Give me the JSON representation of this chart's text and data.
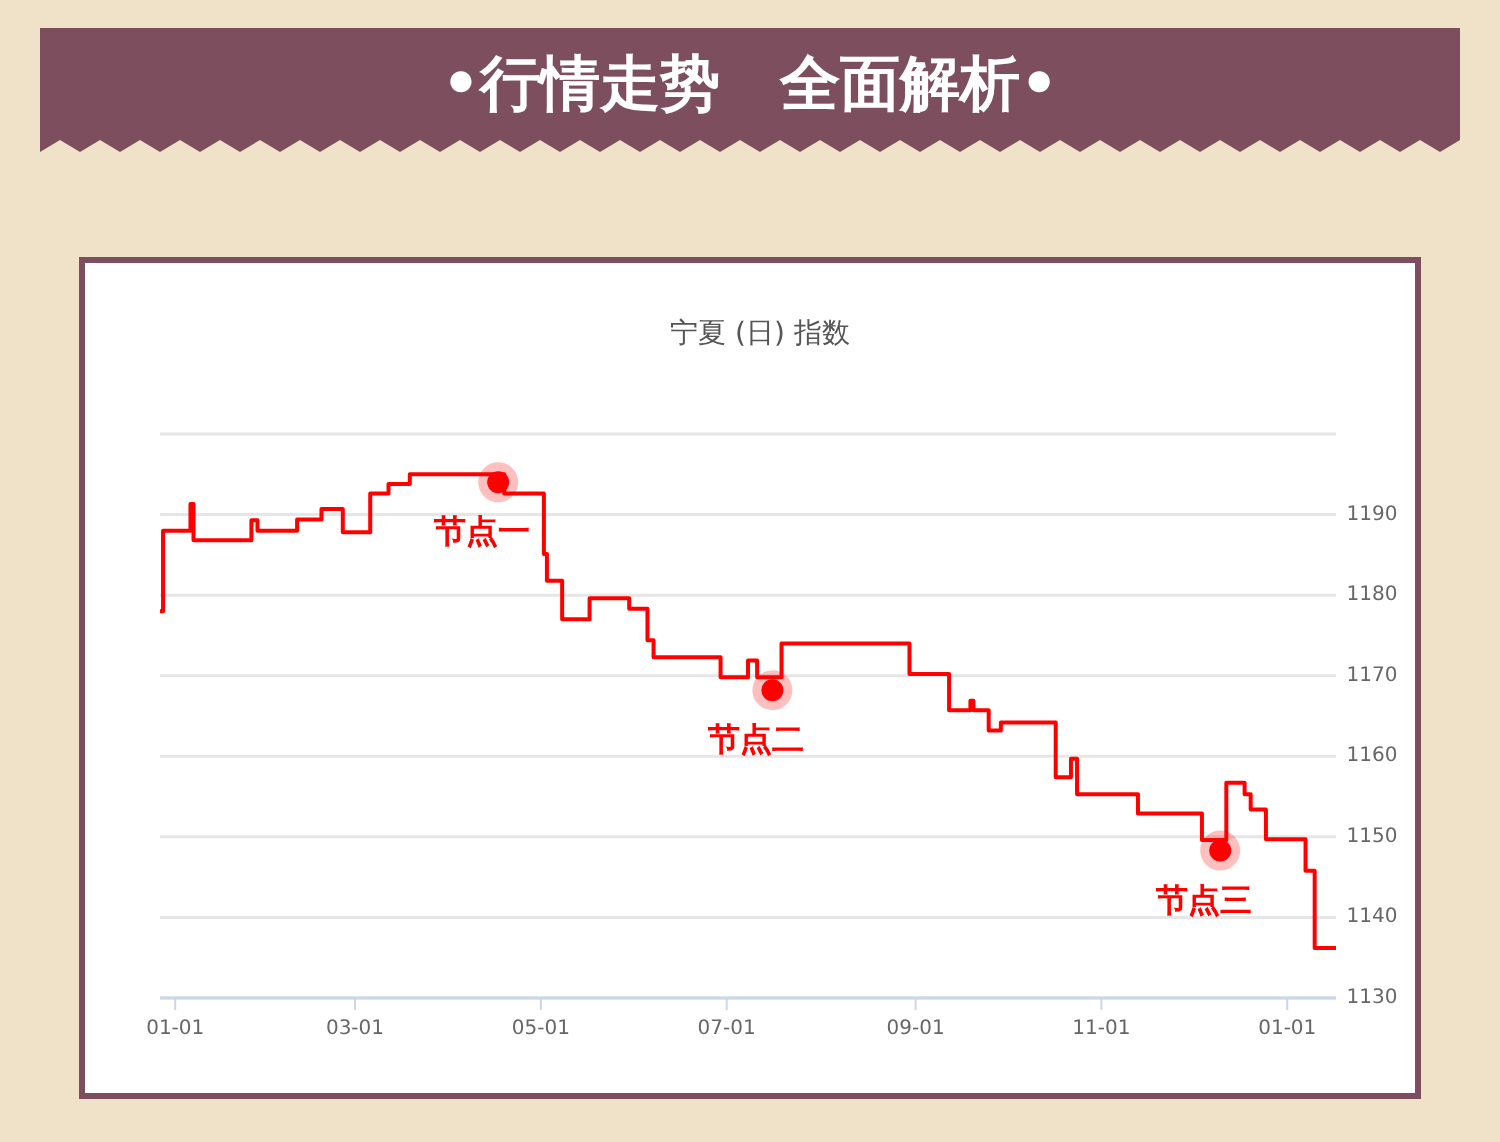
{
  "chart_data": {
    "type": "step",
    "title": "•行情走势　全面解析•",
    "subtitle": "宁夏 (日) 指数",
    "categories": [
      null,
      null,
      null,
      null,
      null,
      "01-01",
      null,
      null,
      null,
      null,
      null,
      null,
      null,
      null,
      null,
      null,
      null,
      null,
      null,
      null,
      null,
      null,
      null,
      null,
      null,
      null,
      null,
      null,
      null,
      null,
      null,
      null,
      null,
      null,
      null,
      null,
      null,
      null,
      null,
      null,
      null,
      null,
      null,
      null,
      null,
      null,
      null,
      null,
      null,
      null,
      null,
      null,
      null,
      null,
      null,
      null,
      null,
      null,
      null,
      null,
      null,
      null,
      null,
      null,
      "03-01",
      null,
      null,
      null,
      null,
      null,
      null,
      null,
      null,
      null,
      null,
      null,
      null,
      null,
      null,
      null,
      null,
      null,
      null,
      null,
      null,
      null,
      null,
      null,
      null,
      null,
      null,
      null,
      null,
      null,
      null,
      null,
      null,
      null,
      null,
      null,
      null,
      null,
      null,
      null,
      null,
      null,
      null,
      null,
      null,
      null,
      null,
      null,
      null,
      null,
      null,
      null,
      null,
      null,
      null,
      null,
      null,
      null,
      null,
      null,
      null,
      "05-01",
      null,
      null,
      null,
      null,
      null,
      null,
      null,
      null,
      null,
      null,
      null,
      null,
      null,
      null,
      null,
      null,
      null,
      null,
      null,
      null,
      null,
      null,
      null,
      null,
      null,
      null,
      null,
      null,
      null,
      null,
      null,
      null,
      null,
      null,
      null,
      null,
      null,
      null,
      null,
      null,
      null,
      null,
      null,
      null,
      null,
      null,
      null,
      null,
      null,
      null,
      null,
      null,
      null,
      null,
      null,
      null,
      null,
      null,
      null,
      null,
      "07-01",
      null,
      null,
      null,
      null,
      null,
      null,
      null,
      null,
      null,
      null,
      null,
      null,
      null,
      null,
      null,
      null,
      null,
      null,
      null,
      null,
      null,
      null,
      null,
      null,
      null,
      null,
      null,
      null,
      null,
      null,
      null,
      null,
      null,
      null,
      null,
      null,
      null,
      null,
      null,
      null,
      null,
      null,
      null,
      null,
      null,
      null,
      null,
      null,
      null,
      null,
      null,
      null,
      null,
      null,
      null,
      null,
      null,
      null,
      null,
      null,
      null,
      "09-01",
      null,
      null,
      null,
      null,
      null,
      null,
      null,
      null,
      null,
      null,
      null,
      null,
      null,
      null,
      null,
      null,
      null,
      null,
      null,
      null,
      null,
      null,
      null,
      null,
      null,
      null,
      null,
      null,
      null,
      null,
      null,
      null,
      null,
      null,
      null,
      null,
      null,
      null,
      null,
      null,
      null,
      null,
      null,
      null,
      null,
      null,
      null,
      null,
      null,
      null,
      null,
      null,
      null,
      null,
      null,
      null,
      null,
      null,
      null,
      null,
      "11-01",
      null,
      null,
      null,
      null,
      null,
      null,
      null,
      null,
      null,
      null,
      null,
      null,
      null,
      null,
      null,
      null,
      null,
      null,
      null,
      null,
      null,
      null,
      null,
      null,
      null,
      null,
      null,
      null,
      null,
      null,
      null,
      null,
      null,
      null,
      null,
      null,
      null,
      null,
      null,
      null,
      null,
      null,
      null,
      null,
      null,
      null,
      null,
      null,
      null,
      null,
      null,
      null,
      null,
      null,
      null,
      null,
      null,
      null,
      null,
      null,
      "01-01",
      null,
      null,
      null,
      null,
      null,
      null,
      null,
      null,
      null,
      null,
      null,
      null,
      null,
      null,
      null,
      null
    ],
    "series": [
      {
        "color": "#ff0000",
        "values": [
          1178,
          1188,
          1188,
          1188,
          1188,
          1188,
          1188,
          1188,
          1188,
          1188,
          1191.3,
          1186.8,
          1186.8,
          1186.8,
          1186.8,
          1186.8,
          1186.8,
          1186.8,
          1186.8,
          1186.8,
          1186.8,
          1186.8,
          1186.8,
          1186.8,
          1186.8,
          1186.8,
          1186.8,
          1186.8,
          1186.8,
          1186.8,
          1189.3,
          1189.3,
          1188,
          1188,
          1188,
          1188,
          1188,
          1188,
          1188,
          1188,
          1188,
          1188,
          1188,
          1188,
          1188,
          1189.4,
          1189.4,
          1189.4,
          1189.4,
          1189.4,
          1189.4,
          1189.4,
          1189.4,
          1190.7,
          1190.7,
          1190.7,
          1190.7,
          1190.7,
          1190.7,
          1190.7,
          1187.8,
          1187.8,
          1187.8,
          1187.8,
          1187.8,
          1187.8,
          1187.8,
          1187.8,
          1187.8,
          1192.6,
          1192.6,
          1192.6,
          1192.6,
          1192.6,
          1192.6,
          1193.8,
          1193.8,
          1193.8,
          1193.8,
          1193.8,
          1193.8,
          1193.8,
          1195,
          1195,
          1195,
          1195,
          1195,
          1195,
          1195,
          1195,
          1195,
          1195,
          1195,
          1195,
          1195,
          1195,
          1195,
          1195,
          1195,
          1195,
          1195,
          1195,
          1195,
          1195,
          1195,
          1195,
          1195,
          1195,
          1195,
          1195,
          1195,
          1195,
          1195,
          1192.6,
          1192.6,
          1192.6,
          1192.6,
          1192.6,
          1192.6,
          1192.6,
          1192.6,
          1192.6,
          1192.6,
          1192.6,
          1192.6,
          1192.6,
          1185.1,
          1181.8,
          1181.8,
          1181.8,
          1181.8,
          1181.8,
          1177,
          1177,
          1177,
          1177,
          1177,
          1177,
          1177,
          1177,
          1177,
          1179.6,
          1179.6,
          1179.6,
          1179.6,
          1179.6,
          1179.6,
          1179.6,
          1179.6,
          1179.6,
          1179.6,
          1179.6,
          1179.6,
          1179.6,
          1178.3,
          1178.3,
          1178.3,
          1178.3,
          1178.3,
          1178.3,
          1174.4,
          1174.4,
          1172.3,
          1172.3,
          1172.3,
          1172.3,
          1172.3,
          1172.3,
          1172.3,
          1172.3,
          1172.3,
          1172.3,
          1172.3,
          1172.3,
          1172.3,
          1172.3,
          1172.3,
          1172.3,
          1172.3,
          1172.3,
          1172.3,
          1172.3,
          1172.3,
          1172.3,
          1169.8,
          1169.8,
          1169.8,
          1169.8,
          1169.8,
          1169.8,
          1169.8,
          1169.8,
          1169.8,
          1171.9,
          1171.9,
          1171.9,
          1169.8,
          1169.8,
          1169.8,
          1169.8,
          1169.8,
          1169.8,
          1169.8,
          1169.8,
          1174,
          1174,
          1174,
          1174,
          1174,
          1174,
          1174,
          1174,
          1174,
          1174,
          1174,
          1174,
          1174,
          1174,
          1174,
          1174,
          1174,
          1174,
          1174,
          1174,
          1174,
          1174,
          1174,
          1174,
          1174,
          1174,
          1174,
          1174,
          1174,
          1174,
          1174,
          1174,
          1174,
          1174,
          1174,
          1174,
          1174,
          1174,
          1174,
          1174,
          1174,
          1174,
          1170.2,
          1170.2,
          1170.2,
          1170.2,
          1170.2,
          1170.2,
          1170.2,
          1170.2,
          1170.2,
          1170.2,
          1170.2,
          1170.2,
          1170.2,
          1165.7,
          1165.7,
          1165.7,
          1165.7,
          1165.7,
          1165.7,
          1165.7,
          1166.9,
          1165.7,
          1165.7,
          1165.7,
          1165.7,
          1165.7,
          1163.2,
          1163.2,
          1163.2,
          1163.2,
          1164.2,
          1164.2,
          1164.2,
          1164.2,
          1164.2,
          1164.2,
          1164.2,
          1164.2,
          1164.2,
          1164.2,
          1164.2,
          1164.2,
          1164.2,
          1164.2,
          1164.2,
          1164.2,
          1164.2,
          1164.2,
          1157.4,
          1157.4,
          1157.4,
          1157.4,
          1157.4,
          1159.7,
          1159.7,
          1155.3,
          1155.3,
          1155.3,
          1155.3,
          1155.3,
          1155.3,
          1155.3,
          1155.3,
          1155.3,
          1155.3,
          1155.3,
          1155.3,
          1155.3,
          1155.3,
          1155.3,
          1155.3,
          1155.3,
          1155.3,
          1155.3,
          1155.3,
          1152.9,
          1152.9,
          1152.9,
          1152.9,
          1152.9,
          1152.9,
          1152.9,
          1152.9,
          1152.9,
          1152.9,
          1152.9,
          1152.9,
          1152.9,
          1152.9,
          1152.9,
          1152.9,
          1152.9,
          1152.9,
          1152.9,
          1152.9,
          1152.9,
          1149.6,
          1149.6,
          1149.6,
          1149.6,
          1149.6,
          1149.6,
          1149.6,
          1149.6,
          1156.7,
          1156.7,
          1156.7,
          1156.7,
          1156.7,
          1156.7,
          1155.3,
          1155.3,
          1153.4,
          1153.4,
          1153.4,
          1153.4,
          1153.4,
          1149.7,
          1149.7,
          1149.7,
          1149.7,
          1149.7,
          1149.7,
          1149.7,
          1149.7,
          1149.7,
          1149.7,
          1149.7,
          1149.7,
          1149.7,
          1145.8,
          1145.8,
          1145.8,
          1136.2,
          1136.2,
          1136.2,
          1136.2,
          1136.2,
          1136.2,
          1136.2,
          1136.2
        ]
      },
      {
        "type": "scatter",
        "marker": "circle",
        "color": "#ff0000",
        "values": [
          null,
          null,
          null,
          null,
          null,
          null,
          null,
          null,
          null,
          null,
          null,
          null,
          null,
          null,
          null,
          null,
          null,
          null,
          null,
          null,
          null,
          null,
          null,
          null,
          null,
          null,
          null,
          null,
          null,
          null,
          null,
          null,
          null,
          null,
          null,
          null,
          null,
          null,
          null,
          null,
          null,
          null,
          null,
          null,
          null,
          null,
          null,
          null,
          null,
          null,
          null,
          null,
          null,
          null,
          null,
          null,
          null,
          null,
          null,
          null,
          null,
          null,
          null,
          null,
          null,
          null,
          null,
          null,
          null,
          null,
          null,
          null,
          null,
          null,
          null,
          null,
          null,
          null,
          null,
          null,
          null,
          null,
          null,
          null,
          null,
          null,
          null,
          null,
          null,
          null,
          null,
          null,
          null,
          null,
          null,
          null,
          null,
          null,
          null,
          null,
          null,
          null,
          null,
          null,
          null,
          null,
          null,
          null,
          null,
          null,
          null,
          1194,
          null,
          null,
          null,
          null,
          null,
          null,
          null,
          null,
          null,
          null,
          null,
          null,
          null,
          null,
          null,
          null,
          null,
          null,
          null,
          null,
          null,
          null,
          null,
          null,
          null,
          null,
          null,
          null,
          null,
          null,
          null,
          null,
          null,
          null,
          null,
          null,
          null,
          null,
          null,
          null,
          null,
          null,
          null,
          null,
          null,
          null,
          null,
          null,
          null,
          null,
          null,
          null,
          null,
          null,
          null,
          null,
          null,
          null,
          null,
          null,
          null,
          null,
          null,
          null,
          null,
          null,
          null,
          null,
          null,
          null,
          null,
          null,
          null,
          null,
          null,
          null,
          null,
          null,
          null,
          null,
          null,
          null,
          null,
          null,
          null,
          null,
          null,
          null,
          null,
          1168.2,
          null,
          null,
          null,
          null,
          null,
          null,
          null,
          null,
          null,
          null,
          null,
          null,
          null,
          null,
          null,
          null,
          null,
          null,
          null,
          null,
          null,
          null,
          null,
          null,
          null,
          null,
          null,
          null,
          null,
          null,
          null,
          null,
          null,
          null,
          null,
          null,
          null,
          null,
          null,
          null,
          null,
          null,
          null,
          null,
          null,
          null,
          null,
          null,
          null,
          null,
          null,
          null,
          null,
          null,
          null,
          null,
          null,
          null,
          null,
          null,
          null,
          null,
          null,
          null,
          null,
          null,
          null,
          null,
          null,
          null,
          null,
          null,
          null,
          null,
          null,
          null,
          null,
          null,
          null,
          null,
          null,
          null,
          null,
          null,
          null,
          null,
          null,
          null,
          null,
          null,
          null,
          null,
          null,
          null,
          null,
          null,
          null,
          null,
          null,
          null,
          null,
          null,
          null,
          null,
          null,
          null,
          null,
          null,
          null,
          null,
          null,
          null,
          null,
          null,
          null,
          null,
          null,
          null,
          null,
          null,
          null,
          null,
          null,
          null,
          null,
          null,
          null,
          null,
          null,
          null,
          null,
          null,
          null,
          null,
          null,
          null,
          null,
          null,
          null,
          null,
          null,
          null,
          null,
          null,
          null,
          null,
          1148.3,
          null,
          null,
          null,
          null,
          null,
          null,
          null,
          null,
          null,
          null,
          null,
          null,
          null,
          null,
          null,
          null,
          null,
          null,
          null,
          null,
          null,
          null,
          null,
          null,
          null,
          null,
          null,
          null,
          null,
          null,
          null,
          null,
          null,
          null,
          null,
          null,
          null,
          null
        ]
      }
    ],
    "ylim": [
      1130,
      1200
    ],
    "yticks": [
      1130,
      1140,
      1150,
      1160,
      1170,
      1180,
      1190,
      {
        "value": 1200,
        "label": null
      }
    ],
    "grid": "y",
    "annotations": [
      "节点一",
      "节点二",
      "节点三"
    ]
  }
}
